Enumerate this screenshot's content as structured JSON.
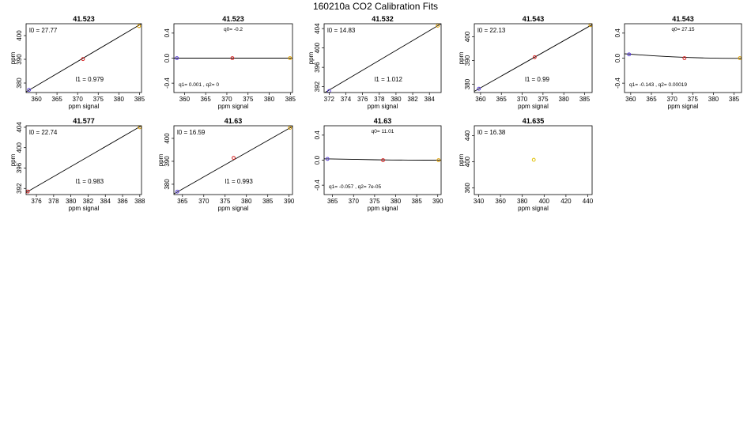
{
  "figure_title": "160210a   CO2 Calibration Fits",
  "chart_data": [
    {
      "type": "scatter",
      "title": "41.523",
      "kind": "linear",
      "xlabel": "ppm signal",
      "ylabel": "ppm",
      "xlim": [
        357.5,
        385.5
      ],
      "ylim": [
        376,
        405
      ],
      "xticks": [
        360,
        365,
        370,
        375,
        380,
        385
      ],
      "yticks": [
        380,
        390,
        400
      ],
      "points": [
        {
          "x": 358.2,
          "y": 377.1,
          "color": "#5a3fd6"
        },
        {
          "x": 371.3,
          "y": 390.1,
          "color": "#d42020"
        },
        {
          "x": 384.9,
          "y": 404.0,
          "color": "#e0a000"
        }
      ],
      "fit": {
        "type": "line",
        "x": [
          357.5,
          385.5
        ],
        "y": [
          376.3,
          405.0
        ]
      },
      "annotations": {
        "left": "l0 =  27.77",
        "mid": "l1 =  0.979"
      }
    },
    {
      "type": "scatter",
      "title": "41.523",
      "kind": "quadratic",
      "xlabel": "ppm signal",
      "ylabel": "",
      "xlim": [
        357.5,
        385.5
      ],
      "ylim": [
        -0.55,
        0.55
      ],
      "xticks": [
        360,
        365,
        370,
        375,
        380,
        385
      ],
      "yticks": [
        -0.4,
        0.0,
        0.4
      ],
      "points": [
        {
          "x": 358.2,
          "y": 0.0,
          "color": "#5a3fd6"
        },
        {
          "x": 371.3,
          "y": 0.0,
          "color": "#d42020"
        },
        {
          "x": 384.9,
          "y": 0.0,
          "color": "#e0a000"
        }
      ],
      "fit": {
        "type": "line",
        "x": [
          357.5,
          385.5
        ],
        "y": [
          0.0,
          0.0
        ]
      },
      "annotations": {
        "top": "q0= -0.2",
        "bottom": "q1= 0.001  ,  q2= 0"
      }
    },
    {
      "type": "scatter",
      "title": "41.532",
      "kind": "linear",
      "xlabel": "ppm signal",
      "ylabel": "ppm",
      "xlim": [
        371.4,
        385.4
      ],
      "ylim": [
        390.8,
        405.0
      ],
      "xticks": [
        372,
        374,
        376,
        378,
        380,
        382,
        384
      ],
      "yticks": [
        392,
        396,
        400,
        404
      ],
      "points": [
        {
          "x": 372.0,
          "y": 391.1,
          "color": "#5a3fd6"
        },
        {
          "x": 385.0,
          "y": 404.6,
          "color": "#e0a000"
        }
      ],
      "fit": {
        "type": "line",
        "x": [
          371.4,
          385.4
        ],
        "y": [
          390.7,
          405.0
        ]
      },
      "annotations": {
        "left": "l0 =  14.83",
        "mid": "l1 =  1.012"
      }
    },
    {
      "type": "scatter",
      "title": "41.543",
      "kind": "linear",
      "xlabel": "ppm signal",
      "ylabel": "ppm",
      "xlim": [
        358.5,
        386.8
      ],
      "ylim": [
        376.5,
        405.5
      ],
      "xticks": [
        360,
        365,
        370,
        375,
        380,
        385
      ],
      "yticks": [
        380,
        390,
        400
      ],
      "points": [
        {
          "x": 359.6,
          "y": 378.1,
          "color": "#5a3fd6"
        },
        {
          "x": 373.0,
          "y": 391.4,
          "color": "#d42020"
        },
        {
          "x": 386.4,
          "y": 404.9,
          "color": "#e0a000"
        }
      ],
      "fit": {
        "type": "line",
        "x": [
          358.5,
          386.8
        ],
        "y": [
          377.0,
          405.1
        ]
      },
      "annotations": {
        "left": "l0 =  22.13",
        "mid": "l1 =  0.99"
      }
    },
    {
      "type": "scatter",
      "title": "41.543",
      "kind": "quadratic",
      "xlabel": "ppm signal",
      "ylabel": "",
      "xlim": [
        358.5,
        386.8
      ],
      "ylim": [
        -0.55,
        0.55
      ],
      "xticks": [
        360,
        365,
        370,
        375,
        380,
        385
      ],
      "yticks": [
        -0.4,
        0.0,
        0.4
      ],
      "points": [
        {
          "x": 359.6,
          "y": 0.06,
          "color": "#5a3fd6"
        },
        {
          "x": 373.0,
          "y": 0.0,
          "color": "#d42020"
        },
        {
          "x": 386.4,
          "y": 0.0,
          "color": "#e0a000"
        }
      ],
      "fit": {
        "type": "curve",
        "x": [
          358.5,
          362,
          366,
          370,
          374,
          378,
          382,
          386.8
        ],
        "y": [
          0.07,
          0.053,
          0.036,
          0.021,
          0.01,
          0.003,
          -0.002,
          -0.004
        ]
      },
      "annotations": {
        "top": "q0= 27.15",
        "bottom": "q1= -0.143  ,  q2= 0.00019"
      }
    },
    {
      "type": "scatter",
      "title": "41.577",
      "kind": "linear",
      "xlabel": "ppm signal",
      "ylabel": "ppm",
      "xlim": [
        374.8,
        388.2
      ],
      "ylim": [
        390.8,
        404.3
      ],
      "xticks": [
        376,
        378,
        380,
        382,
        384,
        386,
        388
      ],
      "yticks": [
        392,
        396,
        400,
        404
      ],
      "points": [
        {
          "x": 375.0,
          "y": 391.4,
          "color": "#d42020"
        },
        {
          "x": 388.0,
          "y": 404.0,
          "color": "#e0a000"
        }
      ],
      "fit": {
        "type": "line",
        "x": [
          374.8,
          388.2
        ],
        "y": [
          391.2,
          404.3
        ]
      },
      "annotations": {
        "left": "l0 =  22.74",
        "mid": "l1 =  0.983"
      }
    },
    {
      "type": "scatter",
      "title": "41.63",
      "kind": "linear",
      "xlabel": "ppm signal",
      "ylabel": "ppm",
      "xlim": [
        363.0,
        390.8
      ],
      "ylim": [
        375.5,
        405.5
      ],
      "xticks": [
        365,
        370,
        375,
        380,
        385,
        390
      ],
      "yticks": [
        380,
        390,
        400
      ],
      "points": [
        {
          "x": 363.8,
          "y": 376.8,
          "color": "#5a3fd6"
        },
        {
          "x": 377.0,
          "y": 391.5,
          "color": "#d42020"
        },
        {
          "x": 390.2,
          "y": 404.6,
          "color": "#e0a000"
        }
      ],
      "fit": {
        "type": "line",
        "x": [
          363.0,
          390.8
        ],
        "y": [
          375.8,
          405.2
        ]
      },
      "annotations": {
        "left": "l0 =  16.59",
        "mid": "l1 =  0.993"
      }
    },
    {
      "type": "scatter",
      "title": "41.63",
      "kind": "quadratic",
      "xlabel": "ppm signal",
      "ylabel": "",
      "xlim": [
        363.0,
        390.8
      ],
      "ylim": [
        -0.55,
        0.55
      ],
      "xticks": [
        365,
        370,
        375,
        380,
        385,
        390
      ],
      "yticks": [
        -0.4,
        0.0,
        0.4
      ],
      "points": [
        {
          "x": 363.8,
          "y": 0.02,
          "color": "#5a3fd6"
        },
        {
          "x": 377.0,
          "y": 0.0,
          "color": "#d42020"
        },
        {
          "x": 390.2,
          "y": 0.0,
          "color": "#e0a000"
        }
      ],
      "fit": {
        "type": "curve",
        "x": [
          363.0,
          367,
          371,
          375,
          379,
          383,
          387,
          390.8
        ],
        "y": [
          0.022,
          0.016,
          0.011,
          0.006,
          0.003,
          0.001,
          0.0,
          0.0
        ]
      },
      "annotations": {
        "top": "q0= 11.01",
        "bottom": "q1= -0.057  ,  q2= 7e-05"
      }
    },
    {
      "type": "scatter",
      "title": "41.635",
      "kind": "linear",
      "xlabel": "ppm signal",
      "ylabel": "ppm",
      "xlim": [
        336,
        444
      ],
      "ylim": [
        350,
        455
      ],
      "xticks": [
        340,
        360,
        380,
        400,
        420,
        440
      ],
      "yticks": [
        360,
        400,
        440
      ],
      "points": [
        {
          "x": 390.5,
          "y": 403.0,
          "color": "#e0c000"
        }
      ],
      "fit": null,
      "annotations": {
        "left": "l0 =  16.38"
      }
    }
  ]
}
